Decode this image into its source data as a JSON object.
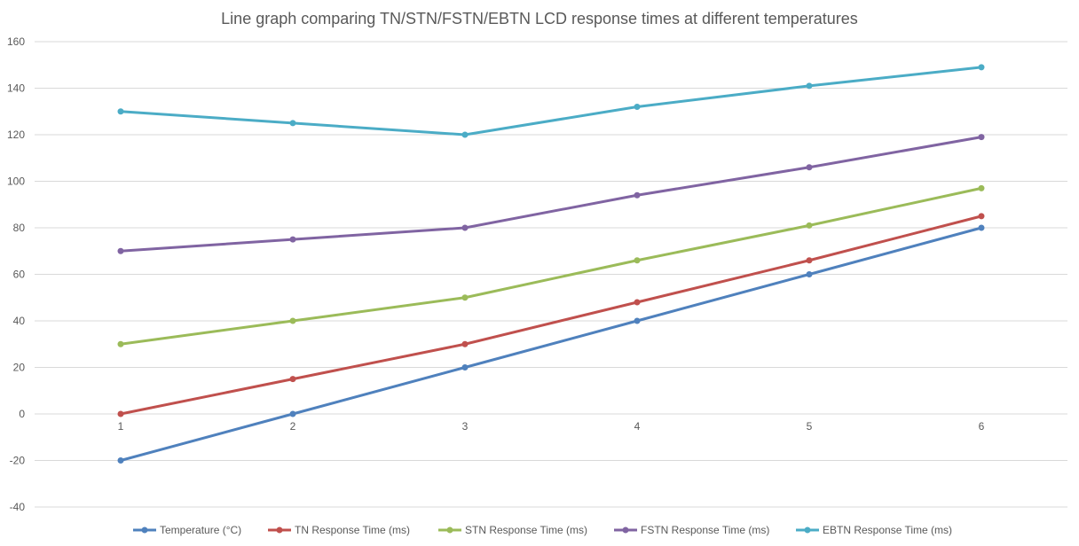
{
  "chart_data": {
    "type": "line",
    "title": "Line graph comparing TN/STN/FSTN/EBTN LCD response times at different temperatures",
    "xlabel": "",
    "ylabel": "",
    "categories": [
      "1",
      "2",
      "3",
      "4",
      "5",
      "6"
    ],
    "ylim": [
      -40,
      160
    ],
    "yticks": [
      -40,
      -20,
      0,
      20,
      40,
      60,
      80,
      100,
      120,
      140,
      160
    ],
    "grid": true,
    "legend_position": "bottom",
    "series": [
      {
        "name": "Temperature (°C)",
        "color": "#4F81BD",
        "values": [
          -20,
          0,
          20,
          40,
          60,
          80
        ]
      },
      {
        "name": "TN Response Time (ms)",
        "color": "#C0504D",
        "values": [
          0,
          15,
          30,
          48,
          66,
          85
        ]
      },
      {
        "name": "STN Response Time (ms)",
        "color": "#9BBB59",
        "values": [
          30,
          40,
          50,
          66,
          81,
          97
        ]
      },
      {
        "name": "FSTN Response Time (ms)",
        "color": "#8064A2",
        "values": [
          70,
          75,
          80,
          94,
          106,
          119
        ]
      },
      {
        "name": "EBTN Response Time (ms)",
        "color": "#4BACC6",
        "values": [
          130,
          125,
          120,
          132,
          141,
          149
        ]
      }
    ]
  }
}
